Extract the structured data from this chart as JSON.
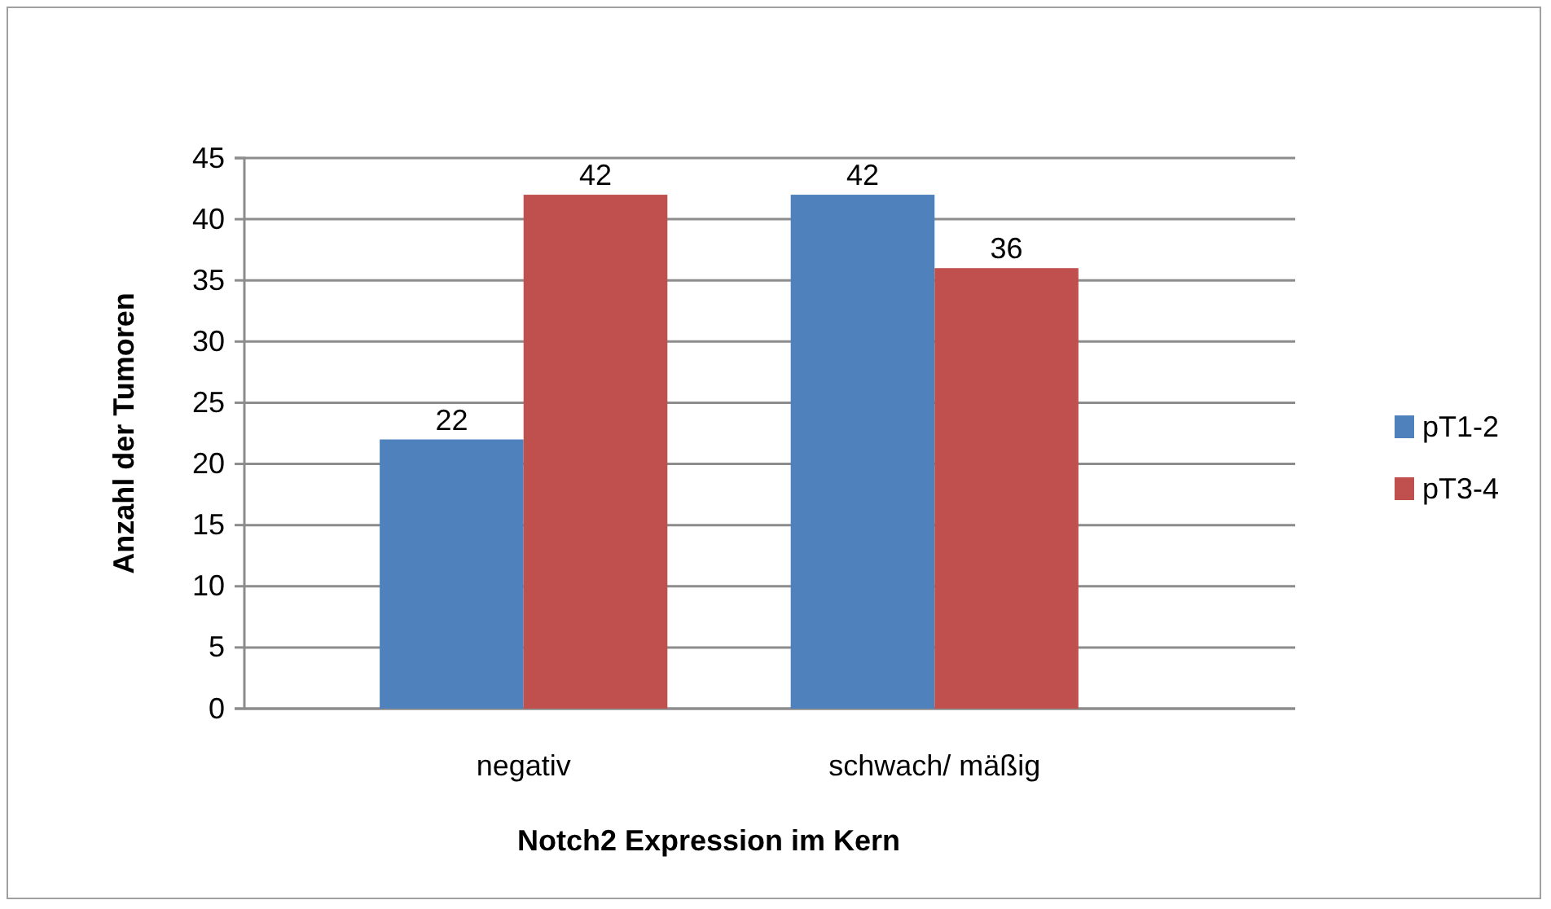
{
  "chart_data": {
    "type": "bar",
    "xlabel": "Notch2 Expression im Kern",
    "ylabel": "Anzahl der Tumoren",
    "categories": [
      "negativ",
      "schwach/ mäßig"
    ],
    "series": [
      {
        "name": "pT1-2",
        "color": "#4f81bd",
        "values": [
          22,
          42
        ]
      },
      {
        "name": "pT3-4",
        "color": "#c0504d",
        "values": [
          42,
          36
        ]
      }
    ],
    "ylim": [
      0,
      45
    ],
    "yticks": [
      0,
      5,
      10,
      15,
      20,
      25,
      30,
      35,
      40,
      45
    ],
    "grid": "y",
    "legend": "right",
    "data_labels": true
  }
}
